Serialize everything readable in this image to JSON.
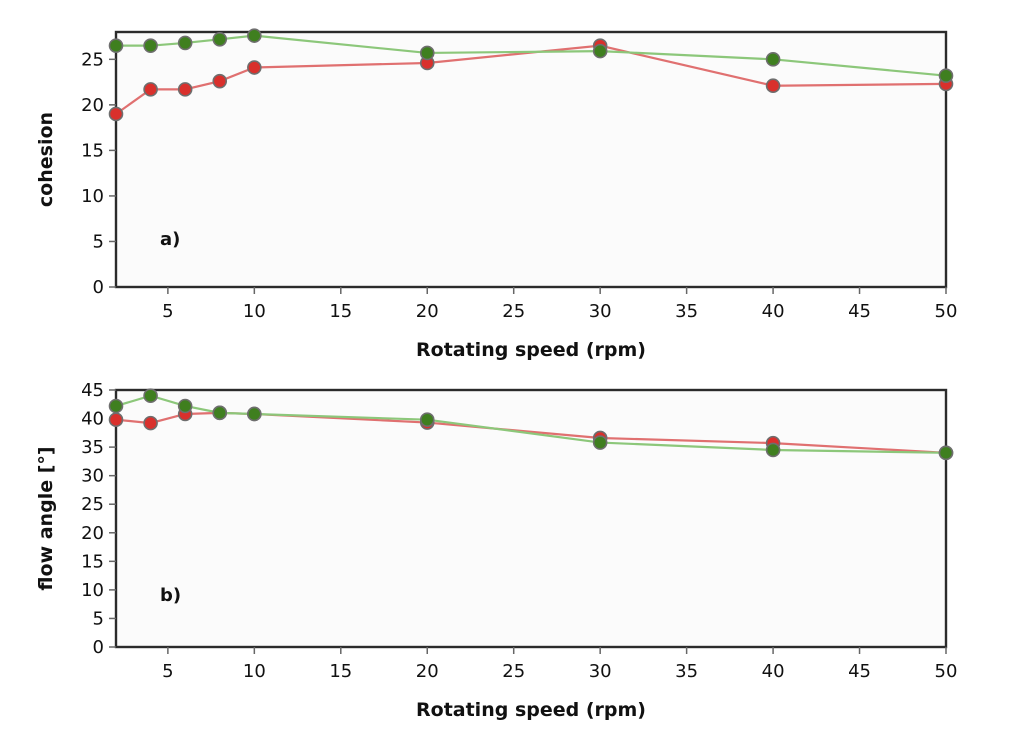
{
  "chart_data": [
    {
      "type": "line",
      "panel_label": "a)",
      "xlabel": "Rotating speed (rpm)",
      "ylabel": "cohesion",
      "xlim": [
        2,
        50
      ],
      "ylim": [
        0,
        28
      ],
      "xticks": [
        5,
        10,
        15,
        20,
        25,
        30,
        35,
        40,
        45,
        50
      ],
      "yticks": [
        0,
        5,
        10,
        15,
        20,
        25
      ],
      "grid": false,
      "series": [
        {
          "color": "#d9302c",
          "line_color": "#e07070",
          "x": [
            2,
            4,
            6,
            8,
            10,
            20,
            30,
            40,
            50
          ],
          "y": [
            19.0,
            21.7,
            21.7,
            22.6,
            24.1,
            24.6,
            26.5,
            22.1,
            22.3
          ]
        },
        {
          "color": "#3f7f1f",
          "line_color": "#8cc77a",
          "x": [
            2,
            4,
            6,
            8,
            10,
            20,
            30,
            40,
            50
          ],
          "y": [
            26.5,
            26.5,
            26.8,
            27.2,
            27.6,
            25.7,
            25.9,
            25.0,
            23.2
          ]
        }
      ]
    },
    {
      "type": "line",
      "panel_label": "b)",
      "xlabel": "Rotating speed (rpm)",
      "ylabel": "flow angle [°]",
      "xlim": [
        2,
        50
      ],
      "ylim": [
        0,
        45
      ],
      "xticks": [
        5,
        10,
        15,
        20,
        25,
        30,
        35,
        40,
        45,
        50
      ],
      "yticks": [
        0,
        5,
        10,
        15,
        20,
        25,
        30,
        35,
        40,
        45
      ],
      "grid": false,
      "series": [
        {
          "color": "#d9302c",
          "line_color": "#e07070",
          "x": [
            2,
            4,
            6,
            8,
            10,
            20,
            30,
            40,
            50
          ],
          "y": [
            39.8,
            39.2,
            40.8,
            41.0,
            40.8,
            39.3,
            36.6,
            35.7,
            34.0
          ]
        },
        {
          "color": "#3f7f1f",
          "line_color": "#8cc77a",
          "x": [
            2,
            4,
            6,
            8,
            10,
            20,
            30,
            40,
            50
          ],
          "y": [
            42.2,
            44.0,
            42.2,
            41.0,
            40.8,
            39.8,
            35.8,
            34.5,
            34.0
          ]
        }
      ]
    }
  ]
}
